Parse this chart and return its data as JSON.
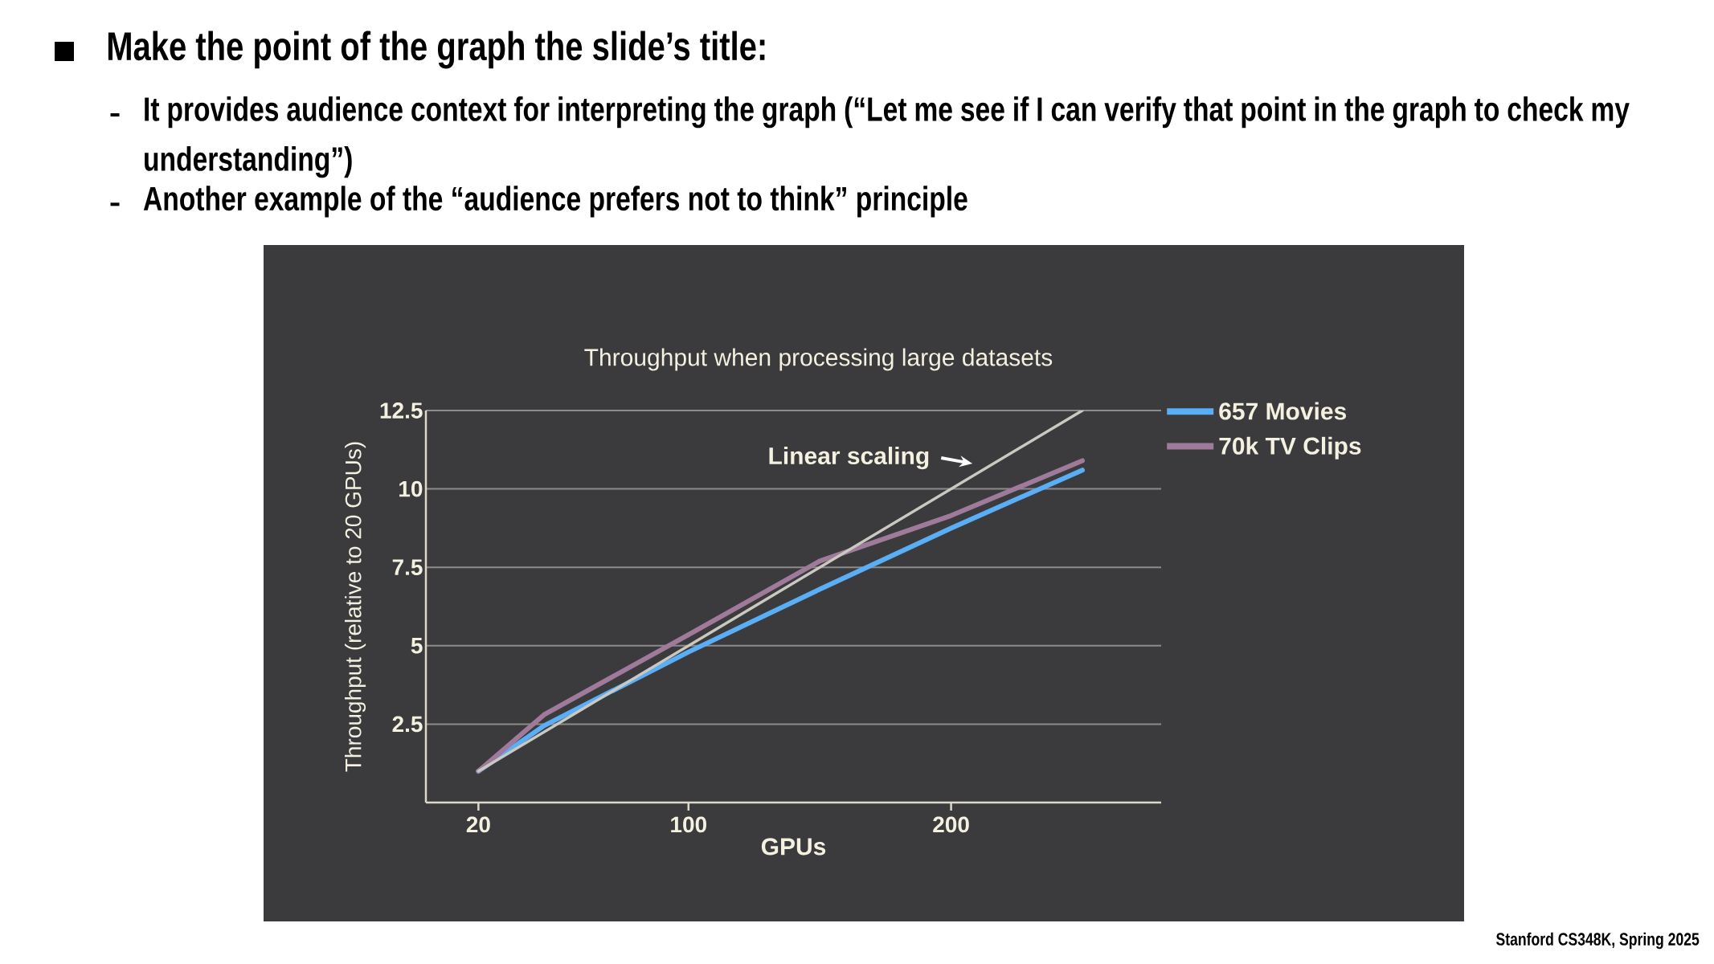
{
  "chart_data": {
    "type": "line",
    "title": "Throughput when processing large datasets",
    "xlabel": "GPUs",
    "ylabel": "Throughput (relative to 20 GPUs)",
    "x": [
      20,
      45,
      100,
      150,
      200,
      250
    ],
    "series": [
      {
        "name": "657 Movies",
        "color": "#5aaef5",
        "values": [
          1,
          2.45,
          4.8,
          6.8,
          8.75,
          10.6
        ]
      },
      {
        "name": "70k TV Clips",
        "color": "#a07a9a",
        "values": [
          1,
          2.8,
          5.35,
          7.7,
          9.15,
          10.9
        ]
      },
      {
        "color": "#c9c9c1",
        "x": [
          20,
          250
        ],
        "values": [
          1,
          12.5
        ]
      }
    ],
    "xlim": [
      0,
      280
    ],
    "ylim": [
      0,
      12.5
    ],
    "xticks": [
      20,
      100,
      200
    ],
    "yticks": [
      2.5,
      5,
      7.5,
      10,
      12.5
    ],
    "grid": "y",
    "legend": "top right",
    "annotations": [
      "Make the point of the graph the slide’s title:",
      "It provides audience context for interpreting the graph (“Let me see if I can verify that point in the graph to check my understanding”)",
      "Another example of the “audience prefers not to think” principle",
      "Stanford CS348K, Spring 2025",
      {
        "text": "Linear scaling",
        "x": 210,
        "y": 10.5
      }
    ]
  }
}
